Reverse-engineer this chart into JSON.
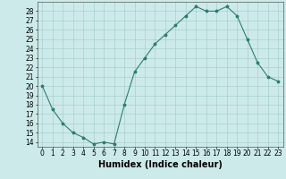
{
  "x": [
    0,
    1,
    2,
    3,
    4,
    5,
    6,
    7,
    8,
    9,
    10,
    11,
    12,
    13,
    14,
    15,
    16,
    17,
    18,
    19,
    20,
    21,
    22,
    23
  ],
  "y": [
    20,
    17.5,
    16,
    15,
    14.5,
    13.8,
    14,
    13.8,
    18,
    21.5,
    23,
    24.5,
    25.5,
    26.5,
    27.5,
    28.5,
    28,
    28,
    28.5,
    27.5,
    25,
    22.5,
    21,
    20.5
  ],
  "line_color": "#2e7d6e",
  "marker": "*",
  "marker_size": 2.5,
  "bg_color": "#cdeaea",
  "grid_color": "#a8d0d0",
  "xlabel": "Humidex (Indice chaleur)",
  "xlim": [
    -0.5,
    23.5
  ],
  "ylim": [
    13.5,
    29
  ],
  "yticks": [
    14,
    15,
    16,
    17,
    18,
    19,
    20,
    21,
    22,
    23,
    24,
    25,
    26,
    27,
    28
  ],
  "xticks": [
    0,
    1,
    2,
    3,
    4,
    5,
    6,
    7,
    8,
    9,
    10,
    11,
    12,
    13,
    14,
    15,
    16,
    17,
    18,
    19,
    20,
    21,
    22,
    23
  ],
  "tick_font_size": 5.5,
  "label_font_size": 7
}
